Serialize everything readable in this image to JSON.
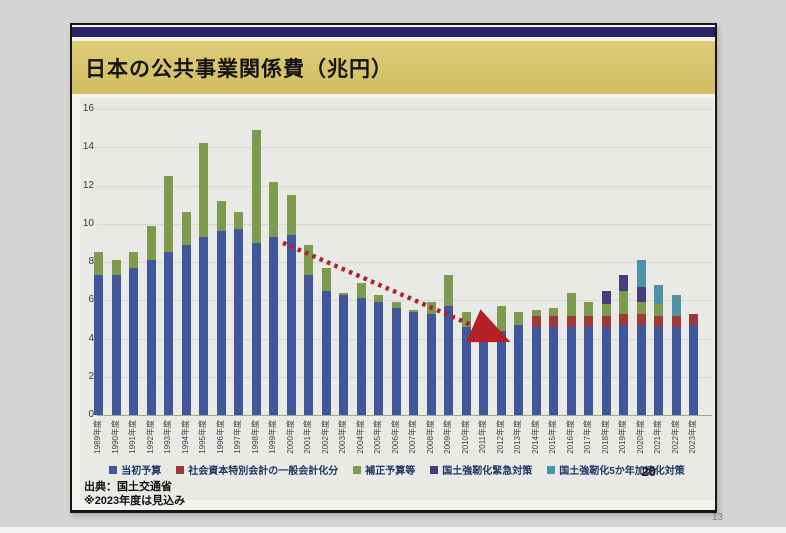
{
  "page": {
    "outer_page_number": "13"
  },
  "slide": {
    "page_number": "20",
    "title": "日本の公共事業関係費（兆円）",
    "source_line1": "出典：国土交通省",
    "source_line2": "※2023年度は見込み",
    "colors": {
      "top_bar_navy": "#29246a",
      "title_band_gold": "#d5c36a",
      "panel_gray": "#e9e9e6",
      "arrow_red": "#b42025"
    }
  },
  "chart_data": {
    "type": "bar",
    "stacked": true,
    "title": "日本の公共事業関係費（兆円）",
    "unit": "兆円",
    "grid": true,
    "legend_position": "bottom",
    "ylim": [
      0,
      16
    ],
    "yticks": [
      0,
      2,
      4,
      6,
      8,
      10,
      12,
      14,
      16
    ],
    "categories": [
      "1989年度",
      "1990年度",
      "1991年度",
      "1992年度",
      "1993年度",
      "1994年度",
      "1995年度",
      "1996年度",
      "1997年度",
      "1998年度",
      "1999年度",
      "2000年度",
      "2001年度",
      "2002年度",
      "2003年度",
      "2004年度",
      "2005年度",
      "2006年度",
      "2007年度",
      "2008年度",
      "2009年度",
      "2010年度",
      "2011年度",
      "2012年度",
      "2013年度",
      "2014年度",
      "2015年度",
      "2016年度",
      "2017年度",
      "2018年度",
      "2019年度",
      "2020年度",
      "2021年度",
      "2022年度",
      "2023年度"
    ],
    "series": [
      {
        "name": "当初予算",
        "color": "#40589b",
        "values": [
          7.3,
          7.3,
          7.7,
          8.1,
          8.5,
          8.9,
          9.3,
          9.6,
          9.7,
          9.0,
          9.3,
          9.4,
          7.3,
          6.5,
          6.3,
          6.1,
          5.9,
          5.6,
          5.4,
          5.3,
          5.7,
          4.6,
          4.5,
          4.4,
          4.7,
          4.6,
          4.6,
          4.6,
          4.6,
          4.6,
          4.7,
          4.7,
          4.6,
          4.6,
          4.7
        ]
      },
      {
        "name": "社会資本特別会計の一般会計化分",
        "color": "#9e3b38",
        "values": [
          0,
          0,
          0,
          0,
          0,
          0,
          0,
          0,
          0,
          0,
          0,
          0,
          0,
          0,
          0,
          0,
          0,
          0,
          0,
          0,
          0,
          0,
          0,
          0,
          0,
          0.6,
          0.6,
          0.6,
          0.6,
          0.6,
          0.6,
          0.6,
          0.6,
          0.6,
          0.6
        ]
      },
      {
        "name": "補正予算等",
        "color": "#7d9b4e",
        "values": [
          1.2,
          0.8,
          0.8,
          1.8,
          4.0,
          1.7,
          4.9,
          1.6,
          0.9,
          5.9,
          2.9,
          2.1,
          1.6,
          1.2,
          0.1,
          0.8,
          0.4,
          0.3,
          0.1,
          0.6,
          1.6,
          0.8,
          0.1,
          1.3,
          0.7,
          0.3,
          0.4,
          1.2,
          0.7,
          0.6,
          1.2,
          0.6,
          0.6,
          0,
          0
        ]
      },
      {
        "name": "国土強靭化緊急対策",
        "color": "#473c7d",
        "values": [
          0,
          0,
          0,
          0,
          0,
          0,
          0,
          0,
          0,
          0,
          0,
          0,
          0,
          0,
          0,
          0,
          0,
          0,
          0,
          0,
          0,
          0,
          0,
          0,
          0,
          0,
          0,
          0,
          0,
          0.7,
          0.8,
          0.8,
          0,
          0,
          0
        ]
      },
      {
        "name": "国土強靭化5か年加速化対策",
        "color": "#4d93a8",
        "values": [
          0,
          0,
          0,
          0,
          0,
          0,
          0,
          0,
          0,
          0,
          0,
          0,
          0,
          0,
          0,
          0,
          0,
          0,
          0,
          0,
          0,
          0,
          0,
          0,
          0,
          0,
          0,
          0,
          0,
          0,
          0,
          1.4,
          1.0,
          1.1,
          0
        ]
      }
    ],
    "annotations": {
      "trend_arrow": {
        "shape": "dotted-arrow",
        "color": "#b42025",
        "from": {
          "category": "2000年度",
          "value": 9.0
        },
        "to": {
          "category": "2012年度",
          "value": 4.1
        }
      }
    }
  }
}
